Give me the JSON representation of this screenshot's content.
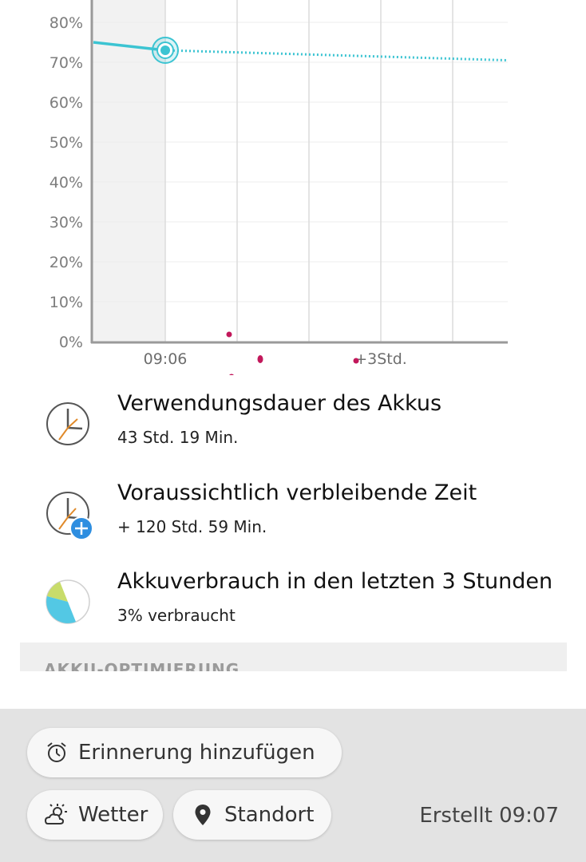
{
  "chart_data": {
    "type": "line",
    "y_tick_labels": [
      "80%",
      "70%",
      "60%",
      "50%",
      "40%",
      "30%",
      "20%",
      "10%",
      "0%"
    ],
    "x_tick_labels": [
      "09:06",
      "+3Std."
    ],
    "series": [
      {
        "style": "solid",
        "points": [
          [
            -1,
            75
          ],
          [
            0,
            73
          ]
        ]
      },
      {
        "style": "dotted",
        "points": [
          [
            0,
            73
          ],
          [
            4.75,
            70.5
          ]
        ]
      }
    ],
    "current_point": [
      0,
      73
    ],
    "line_color": "#3cc4d2"
  },
  "info": [
    {
      "title": "Verwendungsdauer des Akkus",
      "value": "43 Std. 19 Min.",
      "icon": "clock-icon"
    },
    {
      "title": "Voraussichtlich verbleibende Zeit",
      "value": "+ 120 Std. 59 Min.",
      "icon": "clock-plus-icon"
    },
    {
      "title": "Akkuverbrauch in den letzten 3 Stunden",
      "value": "3% verbraucht",
      "icon": "pie-icon"
    }
  ],
  "section": {
    "label": "AKKU-OPTIMIERUNG"
  },
  "bottom": {
    "reminder_label": "Erinnerung hinzufügen",
    "weather_label": "Wetter",
    "location_label": "Standort",
    "created_text": "Erstellt 09:07"
  },
  "colors": {
    "accent": "#3cc4d2",
    "annotation": "#c2185b",
    "panel": "#e3e3e3"
  }
}
